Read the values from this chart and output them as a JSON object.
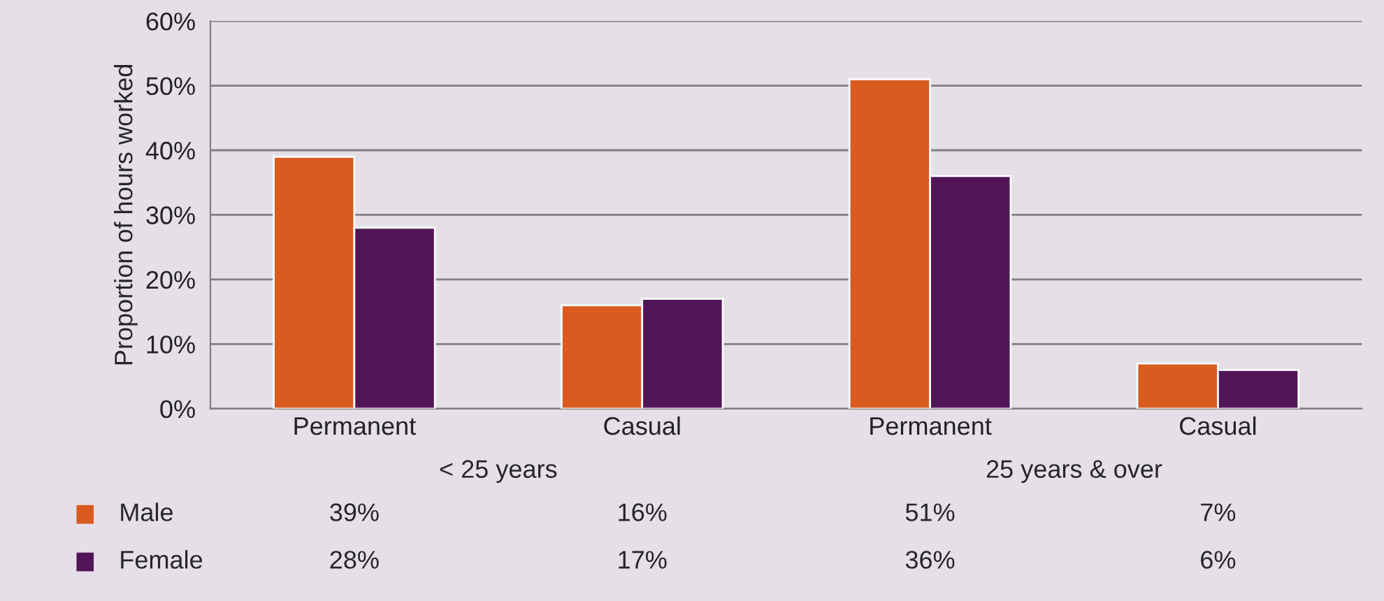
{
  "chart_data": {
    "type": "bar",
    "ylabel": "Proportion of hours worked",
    "categories": [
      "Permanent",
      "Casual",
      "Permanent",
      "Casual"
    ],
    "series": [
      {
        "name": "Male",
        "color": "#d95b1f",
        "values": [
          39,
          16,
          51,
          7
        ],
        "value_labels": [
          "39%",
          "16%",
          "51%",
          "7%"
        ]
      },
      {
        "name": "Female",
        "color": "#521558",
        "values": [
          28,
          17,
          36,
          6
        ],
        "value_labels": [
          "28%",
          "17%",
          "36%",
          "6%"
        ]
      }
    ],
    "ylim": [
      0,
      60
    ],
    "yticks": [
      {
        "value": 0,
        "label": "0%"
      },
      {
        "value": 10,
        "label": "10%"
      },
      {
        "value": 20,
        "label": "20%"
      },
      {
        "value": 30,
        "label": "30%"
      },
      {
        "value": 40,
        "label": "40%"
      },
      {
        "value": 50,
        "label": "50%"
      },
      {
        "value": 60,
        "label": "60%"
      }
    ],
    "grid": "y",
    "legend": "bottom",
    "annotations": [
      "< 25 years",
      "25 years & over"
    ]
  }
}
